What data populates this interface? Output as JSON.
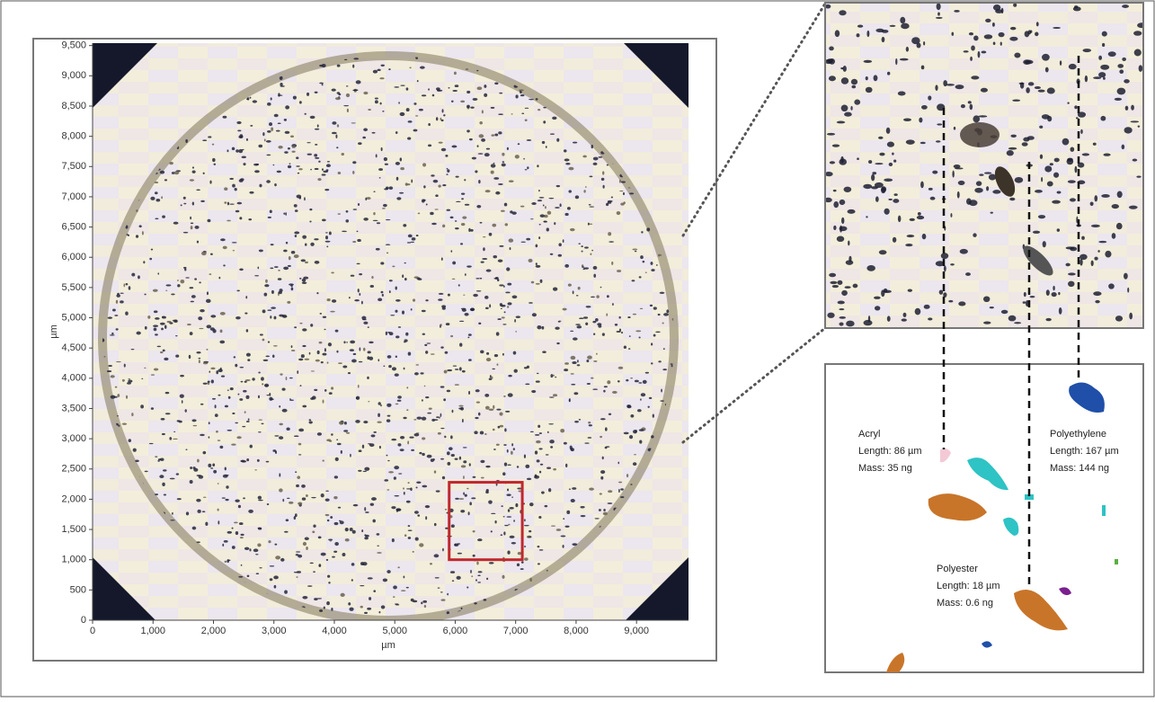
{
  "main_plot": {
    "xlabel": "µm",
    "ylabel": "µm",
    "xlim": [
      0,
      9860
    ],
    "ylim": [
      0,
      9540
    ],
    "xticks": [
      0,
      {
        "value": 1000,
        "label": "1,000"
      },
      {
        "value": 2000,
        "label": "2,000"
      },
      {
        "value": 3000,
        "label": "3,000"
      },
      {
        "value": 4000,
        "label": "4,000"
      },
      {
        "value": 5000,
        "label": "5,000"
      },
      {
        "value": 6000,
        "label": "6,000"
      },
      {
        "value": 7000,
        "label": "7,000"
      },
      {
        "value": 8000,
        "label": "8,000"
      },
      {
        "value": 9000,
        "label": "9,000"
      }
    ],
    "yticks": [
      0,
      500,
      {
        "value": 1000,
        "label": "1,000"
      },
      {
        "value": 1500,
        "label": "1,500"
      },
      {
        "value": 2000,
        "label": "2,000"
      },
      {
        "value": 2500,
        "label": "2,500"
      },
      {
        "value": 3000,
        "label": "3,000"
      },
      {
        "value": 3500,
        "label": "3,500"
      },
      {
        "value": 4000,
        "label": "4,000"
      },
      {
        "value": 4500,
        "label": "4,500"
      },
      {
        "value": 5000,
        "label": "5,000"
      },
      {
        "value": 5500,
        "label": "5,500"
      },
      {
        "value": 6000,
        "label": "6,000"
      },
      {
        "value": 6500,
        "label": "6,500"
      },
      {
        "value": 7000,
        "label": "7,000"
      },
      {
        "value": 7500,
        "label": "7,500"
      },
      {
        "value": 8000,
        "label": "8,000"
      },
      {
        "value": 8500,
        "label": "8,500"
      },
      {
        "value": 9000,
        "label": "9,000"
      },
      {
        "value": 9500,
        "label": "9,500"
      }
    ],
    "zoom_box": {
      "x": [
        5900,
        7110
      ],
      "y": [
        1000,
        2280
      ]
    }
  },
  "particles": [
    {
      "name": "Acryl",
      "length": "Length: 86 µm",
      "mass": "Mass: 35 ng"
    },
    {
      "name": "Polyethylene",
      "length": "Length: 167 µm",
      "mass": "Mass: 144 ng"
    },
    {
      "name": "Polyester",
      "length": "Length: 18 µm",
      "mass": "Mass: 0.6 ng"
    }
  ]
}
